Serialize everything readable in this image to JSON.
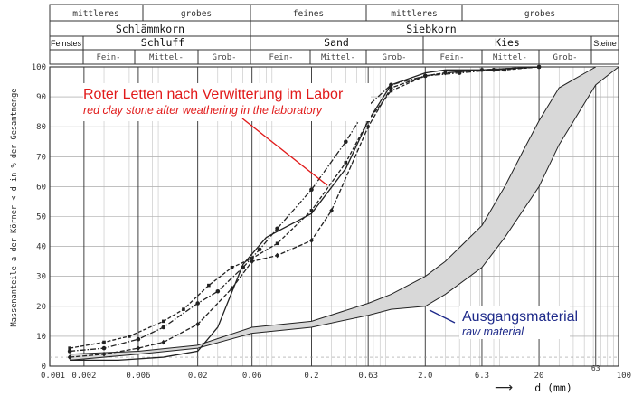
{
  "chart_data": {
    "type": "line",
    "xscale": "log",
    "xlim": [
      0.001,
      100
    ],
    "ylim": [
      0,
      100
    ],
    "grid": true,
    "header": {
      "row1": {
        "mittleres_left": "mittleres",
        "grobes_left": "grobes",
        "feines": "feines",
        "mittleres_right": "mittleres",
        "grobes_right": "grobes"
      },
      "row2": {
        "schlaemmkorn": "Schlämmkorn",
        "siebkorn": "Siebkorn"
      },
      "row3": {
        "feinstes": "Feinstes",
        "schluff": "Schluff",
        "sand": "Sand",
        "kies": "Kies",
        "steine": "Steine"
      },
      "row4": [
        "Fein-",
        "Mittel-",
        "Grob-",
        "Fein-",
        "Mittel-",
        "Grob-",
        "Fein-",
        "Mittel-",
        "Grob-"
      ]
    },
    "ylabel": "Massenanteile a der Körner < d in % der Gesamtmenge",
    "xlabel_arrow": "⟶",
    "xlabel": "d (mm)",
    "x_tick_labels": [
      "0.001",
      "0.002",
      "0.006",
      "0.02",
      "0.06",
      "0.2",
      "0.63",
      "2.0",
      "6.3",
      "20",
      "63",
      "100"
    ],
    "y_tick_labels": [
      "0",
      "10",
      "20",
      "30",
      "40",
      "50",
      "60",
      "70",
      "80",
      "90",
      "100"
    ],
    "annotations": {
      "red_de": "Roter Letten nach Verwitterung im Labor",
      "red_en": "red clay stone after weathering in the laboratory",
      "blue_de": "Ausgangsmaterial",
      "blue_en": "raw material"
    },
    "colors": {
      "red": "#e11a1a",
      "blue": "#1e2a8a",
      "curve": "#222222",
      "band_fill": "#d8d8d8",
      "grid": "#9a9a9a",
      "frame": "#333333"
    },
    "series": [
      {
        "style": "dashed-dots",
        "points": [
          [
            0.0015,
            6
          ],
          [
            0.003,
            8
          ],
          [
            0.005,
            10
          ],
          [
            0.01,
            15
          ],
          [
            0.015,
            19
          ],
          [
            0.025,
            27
          ],
          [
            0.04,
            33
          ],
          [
            0.06,
            36
          ],
          [
            0.1,
            41
          ],
          [
            0.2,
            52
          ],
          [
            0.4,
            68
          ],
          [
            0.63,
            82
          ],
          [
            1,
            92
          ],
          [
            2,
            97
          ],
          [
            3,
            98
          ],
          [
            6.3,
            99
          ],
          [
            10,
            99
          ],
          [
            20,
            100
          ]
        ]
      },
      {
        "style": "dotdash-circles",
        "points": [
          [
            0.0015,
            5
          ],
          [
            0.003,
            6
          ],
          [
            0.006,
            9
          ],
          [
            0.01,
            13
          ],
          [
            0.02,
            21
          ],
          [
            0.03,
            25
          ],
          [
            0.05,
            33
          ],
          [
            0.07,
            39
          ],
          [
            0.1,
            46
          ],
          [
            0.2,
            59
          ],
          [
            0.4,
            75
          ],
          [
            0.63,
            87
          ],
          [
            1,
            94
          ],
          [
            2,
            97
          ],
          [
            4,
            98
          ],
          [
            8,
            99
          ],
          [
            20,
            100
          ]
        ]
      },
      {
        "style": "dashed-diamonds",
        "points": [
          [
            0.0015,
            3
          ],
          [
            0.003,
            4
          ],
          [
            0.006,
            6
          ],
          [
            0.01,
            8
          ],
          [
            0.02,
            14
          ],
          [
            0.04,
            26
          ],
          [
            0.06,
            35
          ],
          [
            0.1,
            37
          ],
          [
            0.2,
            42
          ],
          [
            0.3,
            52
          ],
          [
            0.63,
            80
          ],
          [
            1,
            93
          ],
          [
            2,
            97
          ],
          [
            3,
            98
          ],
          [
            6.3,
            99
          ],
          [
            20,
            100
          ]
        ]
      },
      {
        "style": "solid",
        "points": [
          [
            0.0015,
            2
          ],
          [
            0.004,
            2
          ],
          [
            0.01,
            3
          ],
          [
            0.02,
            5
          ],
          [
            0.03,
            13
          ],
          [
            0.05,
            34
          ],
          [
            0.08,
            43
          ],
          [
            0.1,
            45
          ],
          [
            0.2,
            51
          ],
          [
            0.4,
            66
          ],
          [
            0.63,
            82
          ],
          [
            1,
            94
          ],
          [
            2,
            98
          ],
          [
            3,
            99
          ],
          [
            6.3,
            99
          ],
          [
            20,
            100
          ]
        ]
      }
    ],
    "raw_band": {
      "upper": [
        [
          0.0015,
          4
        ],
        [
          0.006,
          5
        ],
        [
          0.02,
          7
        ],
        [
          0.06,
          13
        ],
        [
          0.2,
          15
        ],
        [
          0.63,
          21
        ],
        [
          1,
          24
        ],
        [
          2,
          30
        ],
        [
          3,
          35
        ],
        [
          6.3,
          47
        ],
        [
          10,
          60
        ],
        [
          15,
          73
        ],
        [
          20,
          82
        ],
        [
          30,
          93
        ],
        [
          63,
          100
        ]
      ],
      "lower": [
        [
          0.0015,
          2
        ],
        [
          0.006,
          4
        ],
        [
          0.02,
          6
        ],
        [
          0.06,
          11
        ],
        [
          0.2,
          13
        ],
        [
          0.63,
          17
        ],
        [
          1,
          19
        ],
        [
          2,
          20
        ],
        [
          3,
          24
        ],
        [
          6.3,
          33
        ],
        [
          10,
          43
        ],
        [
          20,
          60
        ],
        [
          30,
          74
        ],
        [
          63,
          94
        ],
        [
          100,
          100
        ]
      ]
    }
  }
}
